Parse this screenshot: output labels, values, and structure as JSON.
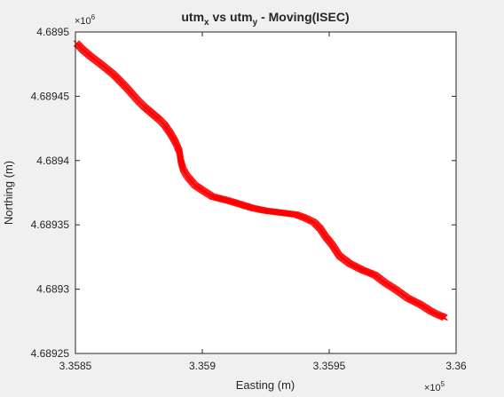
{
  "chart_data": {
    "type": "scatter",
    "marker": "x",
    "marker_color": "#ff0000",
    "title_parts": [
      "utm",
      "x",
      " vs utm",
      "y",
      " - Moving(ISEC)"
    ],
    "xlabel": "Easting (m)",
    "ylabel": "Northing (m)",
    "x_exponent_label": {
      "base": "×10",
      "exp": "5"
    },
    "y_exponent_label": {
      "base": "×10",
      "exp": "6"
    },
    "xlim": [
      335850,
      336000
    ],
    "ylim": [
      4689250,
      4689500
    ],
    "xticks": [
      335850,
      335900,
      335950,
      336000
    ],
    "xtick_labels": [
      "3.3585",
      "3.359",
      "3.3595",
      "3.36"
    ],
    "yticks": [
      4689250,
      4689300,
      4689350,
      4689400,
      4689450,
      4689500
    ],
    "ytick_labels": [
      "4.68925",
      "4.6893",
      "4.68935",
      "4.6894",
      "4.68945",
      "4.6895"
    ],
    "grid": false,
    "series": [
      {
        "x": [
          335850.5,
          335853,
          335856,
          335860,
          335865,
          335870,
          335874,
          335877,
          335880,
          335883,
          335885,
          335887.5,
          335889.5,
          335891,
          335891.5,
          335892.5,
          335894,
          335897,
          335900,
          335904,
          335910,
          335915,
          335920,
          335925,
          335929,
          335933,
          335937,
          335941,
          335944,
          335946.5,
          335948.5,
          335951,
          335954,
          335958,
          335963,
          335968,
          335972,
          335976,
          335981,
          335986,
          335990,
          335993,
          335995.5
        ],
        "y": [
          4689491,
          4689486,
          4689481,
          4689475,
          4689467,
          4689457,
          4689448,
          4689442,
          4689437,
          4689432,
          4689428,
          4689421,
          4689414,
          4689407,
          4689400,
          4689393,
          4689388,
          4689381,
          4689377,
          4689372,
          4689369,
          4689366,
          4689363,
          4689361,
          4689360,
          4689359,
          4689358,
          4689355,
          4689352,
          4689347,
          4689341,
          4689335,
          4689326,
          4689320,
          4689315,
          4689311,
          4689305,
          4689300,
          4689293,
          4689288,
          4689283,
          4689280,
          4689278
        ]
      }
    ]
  }
}
